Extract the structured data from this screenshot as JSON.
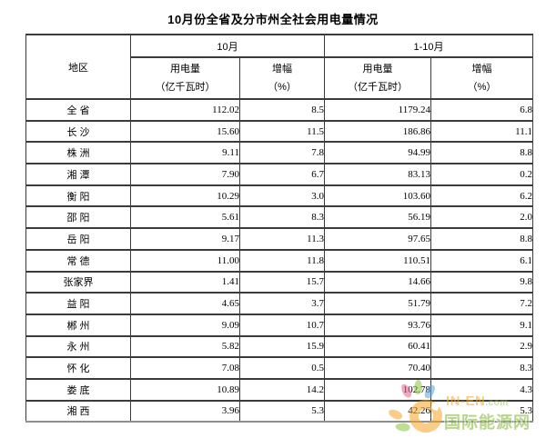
{
  "title": "10月份全省及分市州全社会用电量情况",
  "table": {
    "region_header": "地区",
    "group1_label": "10月",
    "group2_label": "1-10月",
    "sub_consumption_l1": "用电量",
    "sub_consumption_l2": "（亿千瓦时）",
    "sub_growth_l1": "增幅",
    "sub_growth_l2": "（%）",
    "rows": [
      {
        "region": "全 省",
        "oct_use": "112.02",
        "oct_growth": "8.5",
        "ytd_use": "1179.24",
        "ytd_growth": "6.8"
      },
      {
        "region": "长 沙",
        "oct_use": "15.60",
        "oct_growth": "11.5",
        "ytd_use": "186.86",
        "ytd_growth": "11.1"
      },
      {
        "region": "株 洲",
        "oct_use": "9.11",
        "oct_growth": "7.8",
        "ytd_use": "94.99",
        "ytd_growth": "8.8"
      },
      {
        "region": "湘 潭",
        "oct_use": "7.90",
        "oct_growth": "6.7",
        "ytd_use": "83.13",
        "ytd_growth": "0.2"
      },
      {
        "region": "衡 阳",
        "oct_use": "10.29",
        "oct_growth": "3.0",
        "ytd_use": "103.60",
        "ytd_growth": "6.2"
      },
      {
        "region": "邵 阳",
        "oct_use": "5.61",
        "oct_growth": "8.3",
        "ytd_use": "56.19",
        "ytd_growth": "2.0"
      },
      {
        "region": "岳 阳",
        "oct_use": "9.17",
        "oct_growth": "11.3",
        "ytd_use": "97.65",
        "ytd_growth": "8.8"
      },
      {
        "region": "常 德",
        "oct_use": "11.00",
        "oct_growth": "11.8",
        "ytd_use": "110.51",
        "ytd_growth": "6.1"
      },
      {
        "region": "张家界",
        "oct_use": "1.41",
        "oct_growth": "15.7",
        "ytd_use": "14.66",
        "ytd_growth": "9.8"
      },
      {
        "region": "益 阳",
        "oct_use": "4.65",
        "oct_growth": "3.7",
        "ytd_use": "51.79",
        "ytd_growth": "7.2"
      },
      {
        "region": "郴 州",
        "oct_use": "9.09",
        "oct_growth": "10.7",
        "ytd_use": "93.76",
        "ytd_growth": "9.1"
      },
      {
        "region": "永 州",
        "oct_use": "5.82",
        "oct_growth": "15.9",
        "ytd_use": "60.41",
        "ytd_growth": "2.9"
      },
      {
        "region": "怀 化",
        "oct_use": "7.08",
        "oct_growth": "0.5",
        "ytd_use": "70.40",
        "ytd_growth": "8.3"
      },
      {
        "region": "娄 底",
        "oct_use": "10.89",
        "oct_growth": "14.2",
        "ytd_use": "102.78",
        "ytd_growth": "4.3"
      },
      {
        "region": "湘 西",
        "oct_use": "3.96",
        "oct_growth": "5.3",
        "ytd_use": "42.26",
        "ytd_growth": "5.3"
      }
    ]
  },
  "watermark": {
    "brand_main": "IN-EN",
    "brand_suffix": ".com",
    "site_name": "国际能源网",
    "accent_orange": "#f5a623",
    "accent_green": "#8bc53f",
    "accent_blue": "#58a7dc",
    "accent_pink": "#e8638c"
  },
  "chart_data": {
    "type": "table",
    "title": "10月份全省及分市州全社会用电量情况",
    "columns": [
      "地区",
      "10月 用电量（亿千瓦时）",
      "10月 增幅（%）",
      "1-10月 用电量（亿千瓦时）",
      "1-10月 增幅（%）"
    ],
    "rows": [
      [
        "全省",
        112.02,
        8.5,
        1179.24,
        6.8
      ],
      [
        "长沙",
        15.6,
        11.5,
        186.86,
        11.1
      ],
      [
        "株洲",
        9.11,
        7.8,
        94.99,
        8.8
      ],
      [
        "湘潭",
        7.9,
        6.7,
        83.13,
        0.2
      ],
      [
        "衡阳",
        10.29,
        3.0,
        103.6,
        6.2
      ],
      [
        "邵阳",
        5.61,
        8.3,
        56.19,
        2.0
      ],
      [
        "岳阳",
        9.17,
        11.3,
        97.65,
        8.8
      ],
      [
        "常德",
        11.0,
        11.8,
        110.51,
        6.1
      ],
      [
        "张家界",
        1.41,
        15.7,
        14.66,
        9.8
      ],
      [
        "益阳",
        4.65,
        3.7,
        51.79,
        7.2
      ],
      [
        "郴州",
        9.09,
        10.7,
        93.76,
        9.1
      ],
      [
        "永州",
        5.82,
        15.9,
        60.41,
        2.9
      ],
      [
        "怀化",
        7.08,
        0.5,
        70.4,
        8.3
      ],
      [
        "娄底",
        10.89,
        14.2,
        102.78,
        4.3
      ],
      [
        "湘西",
        3.96,
        5.3,
        42.26,
        5.3
      ]
    ]
  }
}
